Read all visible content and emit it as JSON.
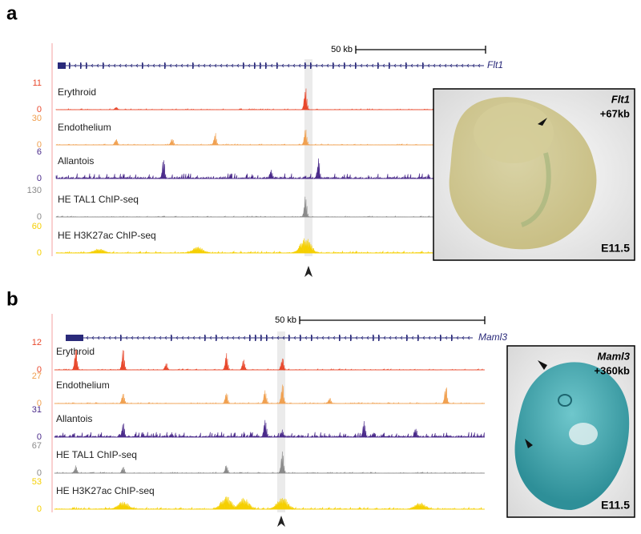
{
  "panels": [
    {
      "label": "a",
      "scale_label": "50 kb",
      "gene": "Flt1",
      "tracks": [
        {
          "name": "Erythroid",
          "max": 11,
          "min": 0,
          "color": "#e8482c"
        },
        {
          "name": "Endothelium",
          "max": 30,
          "min": 0,
          "color": "#f0a050"
        },
        {
          "name": "Allantois",
          "max": 6,
          "min": 0,
          "color": "#4a2a8a"
        },
        {
          "name": "HE TAL1 ChIP-seq",
          "max": 130,
          "min": 0,
          "color": "#8a8a8a"
        },
        {
          "name": "HE H3K27ac ChIP-seq",
          "max": 60,
          "min": 0,
          "color": "#f5cf00"
        }
      ],
      "embryo": {
        "gene": "Flt1",
        "enhancer": "+67kb",
        "stage": "E11.5"
      }
    },
    {
      "label": "b",
      "scale_label": "50 kb",
      "gene": "Maml3",
      "tracks": [
        {
          "name": "Erythroid",
          "max": 12,
          "min": 0,
          "color": "#e8482c"
        },
        {
          "name": "Endothelium",
          "max": 27,
          "min": 0,
          "color": "#f0a050"
        },
        {
          "name": "Allantois",
          "max": 31,
          "min": 0,
          "color": "#4a2a8a"
        },
        {
          "name": "HE TAL1 ChIP-seq",
          "max": 67,
          "min": 0,
          "color": "#8a8a8a"
        },
        {
          "name": "HE H3K27ac ChIP-seq",
          "max": 53,
          "min": 0,
          "color": "#f5cf00"
        }
      ],
      "embryo": {
        "gene": "Maml3",
        "enhancer": "+360kb",
        "stage": "E11.5"
      }
    }
  ]
}
